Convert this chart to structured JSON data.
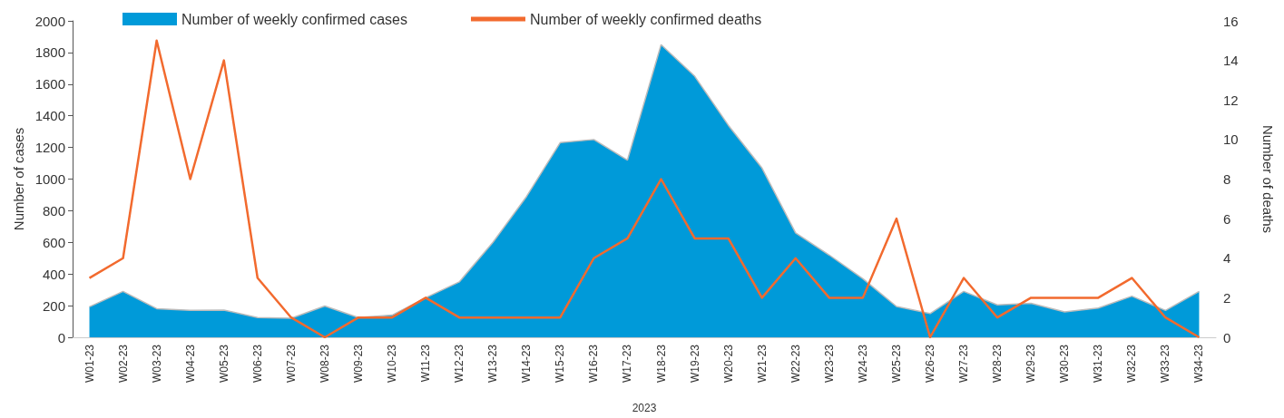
{
  "chart_data": {
    "type": "area",
    "xlabel": "2023",
    "ylabel": "Number of cases",
    "y2label": "Number of deaths",
    "categories": [
      "W01-23",
      "W02-23",
      "W03-23",
      "W04-23",
      "W05-23",
      "W06-23",
      "W07-23",
      "W08-23",
      "W09-23",
      "W10-23",
      "W11-23",
      "W12-23",
      "W13-23",
      "W14-23",
      "W15-23",
      "W16-23",
      "W17-23",
      "W18-23",
      "W19-23",
      "W20-23",
      "W21-23",
      "W22-23",
      "W23-23",
      "W24-23",
      "W25-23",
      "W26-23",
      "W27-23",
      "W28-23",
      "W29-23",
      "W30-23",
      "W31-23",
      "W32-23",
      "W33-23",
      "W34-23"
    ],
    "series": [
      {
        "name": "Number of weekly confirmed cases",
        "color": "#009ad9",
        "values": [
          193,
          290,
          181,
          170,
          172,
          125,
          120,
          198,
          125,
          140,
          250,
          350,
          600,
          890,
          1230,
          1250,
          1120,
          1850,
          1650,
          1340,
          1070,
          660,
          520,
          370,
          195,
          150,
          290,
          205,
          215,
          160,
          185,
          260,
          170,
          290
        ]
      },
      {
        "name": "Number of weekly confirmed deaths",
        "type": "line",
        "axis": "y2",
        "color": "#f26a2e",
        "values": [
          3,
          4,
          15,
          8,
          14,
          3,
          1,
          0,
          1,
          1,
          2,
          1,
          1,
          1,
          1,
          4,
          5,
          8,
          5,
          5,
          2,
          4,
          2,
          2,
          6,
          0,
          3,
          1,
          2,
          2,
          2,
          3,
          1,
          0
        ]
      }
    ],
    "ylim": [
      0,
      2000
    ],
    "yticks": [
      0,
      200,
      400,
      600,
      800,
      1000,
      1200,
      1400,
      1600,
      1800,
      2000
    ],
    "y2lim": [
      0,
      16
    ],
    "y2ticks": [
      0,
      2,
      4,
      6,
      8,
      10,
      12,
      14,
      16
    ],
    "grid": false,
    "legend": "top",
    "marker": "none",
    "line_style": "solid"
  }
}
